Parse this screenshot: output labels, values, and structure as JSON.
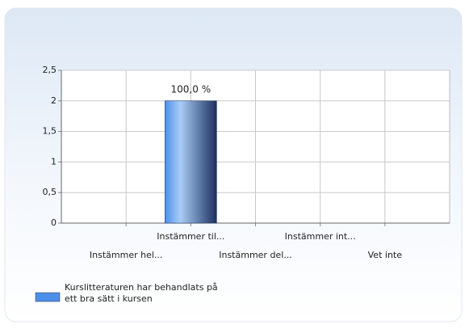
{
  "chart_data": {
    "type": "bar",
    "categories": [
      "Instämmer hel...",
      "Instämmer til...",
      "Instämmer del...",
      "Instämmer int...",
      "Vet inte"
    ],
    "series": [
      {
        "name": "Kurslitteraturen har behandlats på ett bra sätt i kursen",
        "color": "#4d8fe8",
        "values": [
          0,
          2,
          0,
          0,
          0
        ]
      }
    ],
    "shares": [
      0,
      100,
      0,
      0,
      0
    ],
    "share_labels": [
      null,
      "100,0 %",
      null,
      null,
      null
    ],
    "ylim": [
      0,
      2.5
    ],
    "yticks": [
      0,
      {
        "value": 0.5,
        "label": "0,5"
      },
      1,
      {
        "value": 1.5,
        "label": "1,5"
      },
      2,
      {
        "value": 2.5,
        "label": "2,5"
      }
    ],
    "grid": true
  }
}
